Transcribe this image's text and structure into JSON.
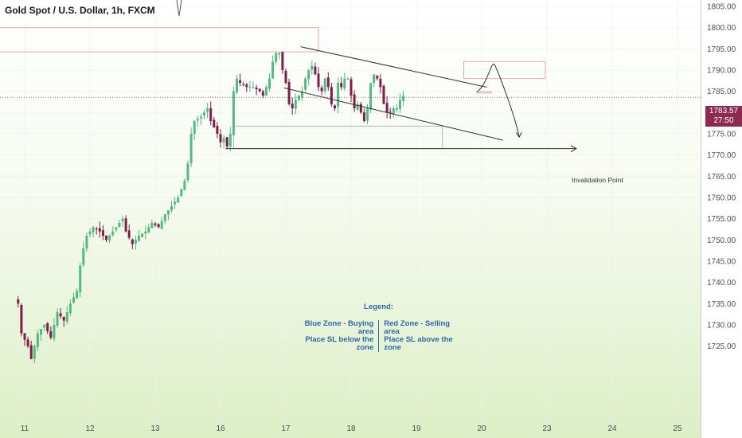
{
  "header": {
    "title": "Gold Spot / U.S. Dollar, 1h, FXCM"
  },
  "legend": {
    "title": "Legend:",
    "blue_line1": "Blue Zone - Buying area",
    "blue_line2": "Place SL below the zone",
    "red_line1": "Red Zone - Selling area",
    "red_line2": "Place SL above the zone"
  },
  "price_tag": {
    "price": "1783.57",
    "timer": "27:50"
  },
  "annotations": {
    "invalidation": "Invalidation Point"
  },
  "colors": {
    "bull": "#53b987",
    "bear": "#7d1e46",
    "grid": "#eceff2",
    "red_zone": "#e8a9a9",
    "blue_zone": "#9fb9d3",
    "legend_text": "#2a6aa8",
    "price_tag": "#8c2a4f",
    "trendline": "#333333"
  },
  "chart_data": {
    "type": "candlestick",
    "symbol": "Gold Spot / U.S. Dollar",
    "interval": "1h",
    "source": "FXCM",
    "ylim": [
      1720,
      1807
    ],
    "y_ticks": [
      1725,
      1730,
      1735,
      1740,
      1745,
      1750,
      1755,
      1760,
      1765,
      1770,
      1775,
      1780,
      1785,
      1790,
      1795,
      1800,
      1805
    ],
    "x_ticks": [
      {
        "label": "11",
        "bar": 2
      },
      {
        "label": "12",
        "bar": 22
      },
      {
        "label": "13",
        "bar": 42
      },
      {
        "label": "16",
        "bar": 62
      },
      {
        "label": "17",
        "bar": 82
      },
      {
        "label": "18",
        "bar": 102
      },
      {
        "label": "19",
        "bar": 122
      },
      {
        "label": "20",
        "bar": 142
      },
      {
        "label": "23",
        "bar": 162
      },
      {
        "label": "24",
        "bar": 182
      },
      {
        "label": "25",
        "bar": 202
      }
    ],
    "last_price": 1783.57,
    "anchors": [
      [
        0,
        1735
      ],
      [
        1,
        1728
      ],
      [
        3,
        1725
      ],
      [
        4,
        1722
      ],
      [
        6,
        1728
      ],
      [
        8,
        1730
      ],
      [
        10,
        1727
      ],
      [
        12,
        1733
      ],
      [
        14,
        1731
      ],
      [
        16,
        1735
      ],
      [
        18,
        1738
      ],
      [
        19,
        1744
      ],
      [
        20,
        1748
      ],
      [
        21,
        1751
      ],
      [
        23,
        1753
      ],
      [
        25,
        1752
      ],
      [
        27,
        1750
      ],
      [
        29,
        1752
      ],
      [
        31,
        1754
      ],
      [
        32,
        1755
      ],
      [
        33,
        1752
      ],
      [
        35,
        1749
      ],
      [
        37,
        1751
      ],
      [
        39,
        1752
      ],
      [
        41,
        1754
      ],
      [
        43,
        1753
      ],
      [
        45,
        1756
      ],
      [
        47,
        1758
      ],
      [
        49,
        1760
      ],
      [
        51,
        1764
      ],
      [
        52,
        1768
      ],
      [
        53,
        1775
      ],
      [
        54,
        1778
      ],
      [
        56,
        1779
      ],
      [
        58,
        1781
      ],
      [
        59,
        1778
      ],
      [
        61,
        1775
      ],
      [
        62,
        1773
      ],
      [
        63,
        1774
      ],
      [
        64,
        1772
      ],
      [
        65,
        1775
      ],
      [
        66,
        1785
      ],
      [
        67,
        1788
      ],
      [
        68,
        1787
      ],
      [
        70,
        1786
      ],
      [
        72,
        1786
      ],
      [
        74,
        1785
      ],
      [
        75,
        1784
      ],
      [
        77,
        1788
      ],
      [
        78,
        1792
      ],
      [
        79,
        1794
      ],
      [
        80,
        1794
      ],
      [
        81,
        1790
      ],
      [
        82,
        1787
      ],
      [
        83,
        1782
      ],
      [
        84,
        1781
      ],
      [
        85,
        1783
      ],
      [
        86,
        1784
      ],
      [
        87,
        1785
      ],
      [
        88,
        1788
      ],
      [
        89,
        1790
      ],
      [
        90,
        1791
      ],
      [
        91,
        1789
      ],
      [
        92,
        1786
      ],
      [
        93,
        1785
      ],
      [
        94,
        1788
      ],
      [
        95,
        1786
      ],
      [
        96,
        1782
      ],
      [
        97,
        1781
      ],
      [
        98,
        1787
      ],
      [
        99,
        1786
      ],
      [
        100,
        1788
      ],
      [
        101,
        1788
      ],
      [
        102,
        1784
      ],
      [
        103,
        1781
      ],
      [
        104,
        1782
      ],
      [
        105,
        1780
      ],
      [
        106,
        1778
      ],
      [
        107,
        1781
      ],
      [
        108,
        1787
      ],
      [
        109,
        1789
      ],
      [
        110,
        1788
      ],
      [
        111,
        1786
      ],
      [
        112,
        1782
      ],
      [
        113,
        1780
      ],
      [
        114,
        1780
      ],
      [
        115,
        1781
      ],
      [
        116,
        1781
      ],
      [
        117,
        1783
      ],
      [
        118,
        1784
      ]
    ],
    "zones": [
      {
        "type": "red",
        "from": {
          "x": -20,
          "y": 1800
        },
        "to": {
          "x": 92,
          "y": 1794.3
        }
      },
      {
        "type": "red",
        "from": {
          "x": 136.5,
          "y": 1792
        },
        "to": {
          "x": 161.5,
          "y": 1788
        }
      },
      {
        "type": "red",
        "from": {
          "x": 140.5,
          "y": 1784.9
        },
        "to": {
          "x": 145,
          "y": 1784.6
        }
      },
      {
        "type": "blue",
        "from": {
          "x": 66,
          "y": 1776.8
        },
        "to": {
          "x": 130,
          "y": 1771.5
        }
      }
    ],
    "lines": [
      {
        "from": {
          "x": 86.5,
          "y": 1795.5
        },
        "to": {
          "x": 143.5,
          "y": 1786
        }
      },
      {
        "from": {
          "x": 81.5,
          "y": 1785.8
        },
        "to": {
          "x": 148.5,
          "y": 1773.5
        }
      },
      {
        "from": {
          "x": 63.5,
          "y": 1771.5
        },
        "to": {
          "x": 171,
          "y": 1771.5
        }
      }
    ],
    "projection": [
      {
        "x": 140.5,
        "y": 1784.8
      },
      {
        "x": 146,
        "y": 1791.2
      },
      {
        "x": 153.5,
        "y": 1774.2
      }
    ]
  }
}
